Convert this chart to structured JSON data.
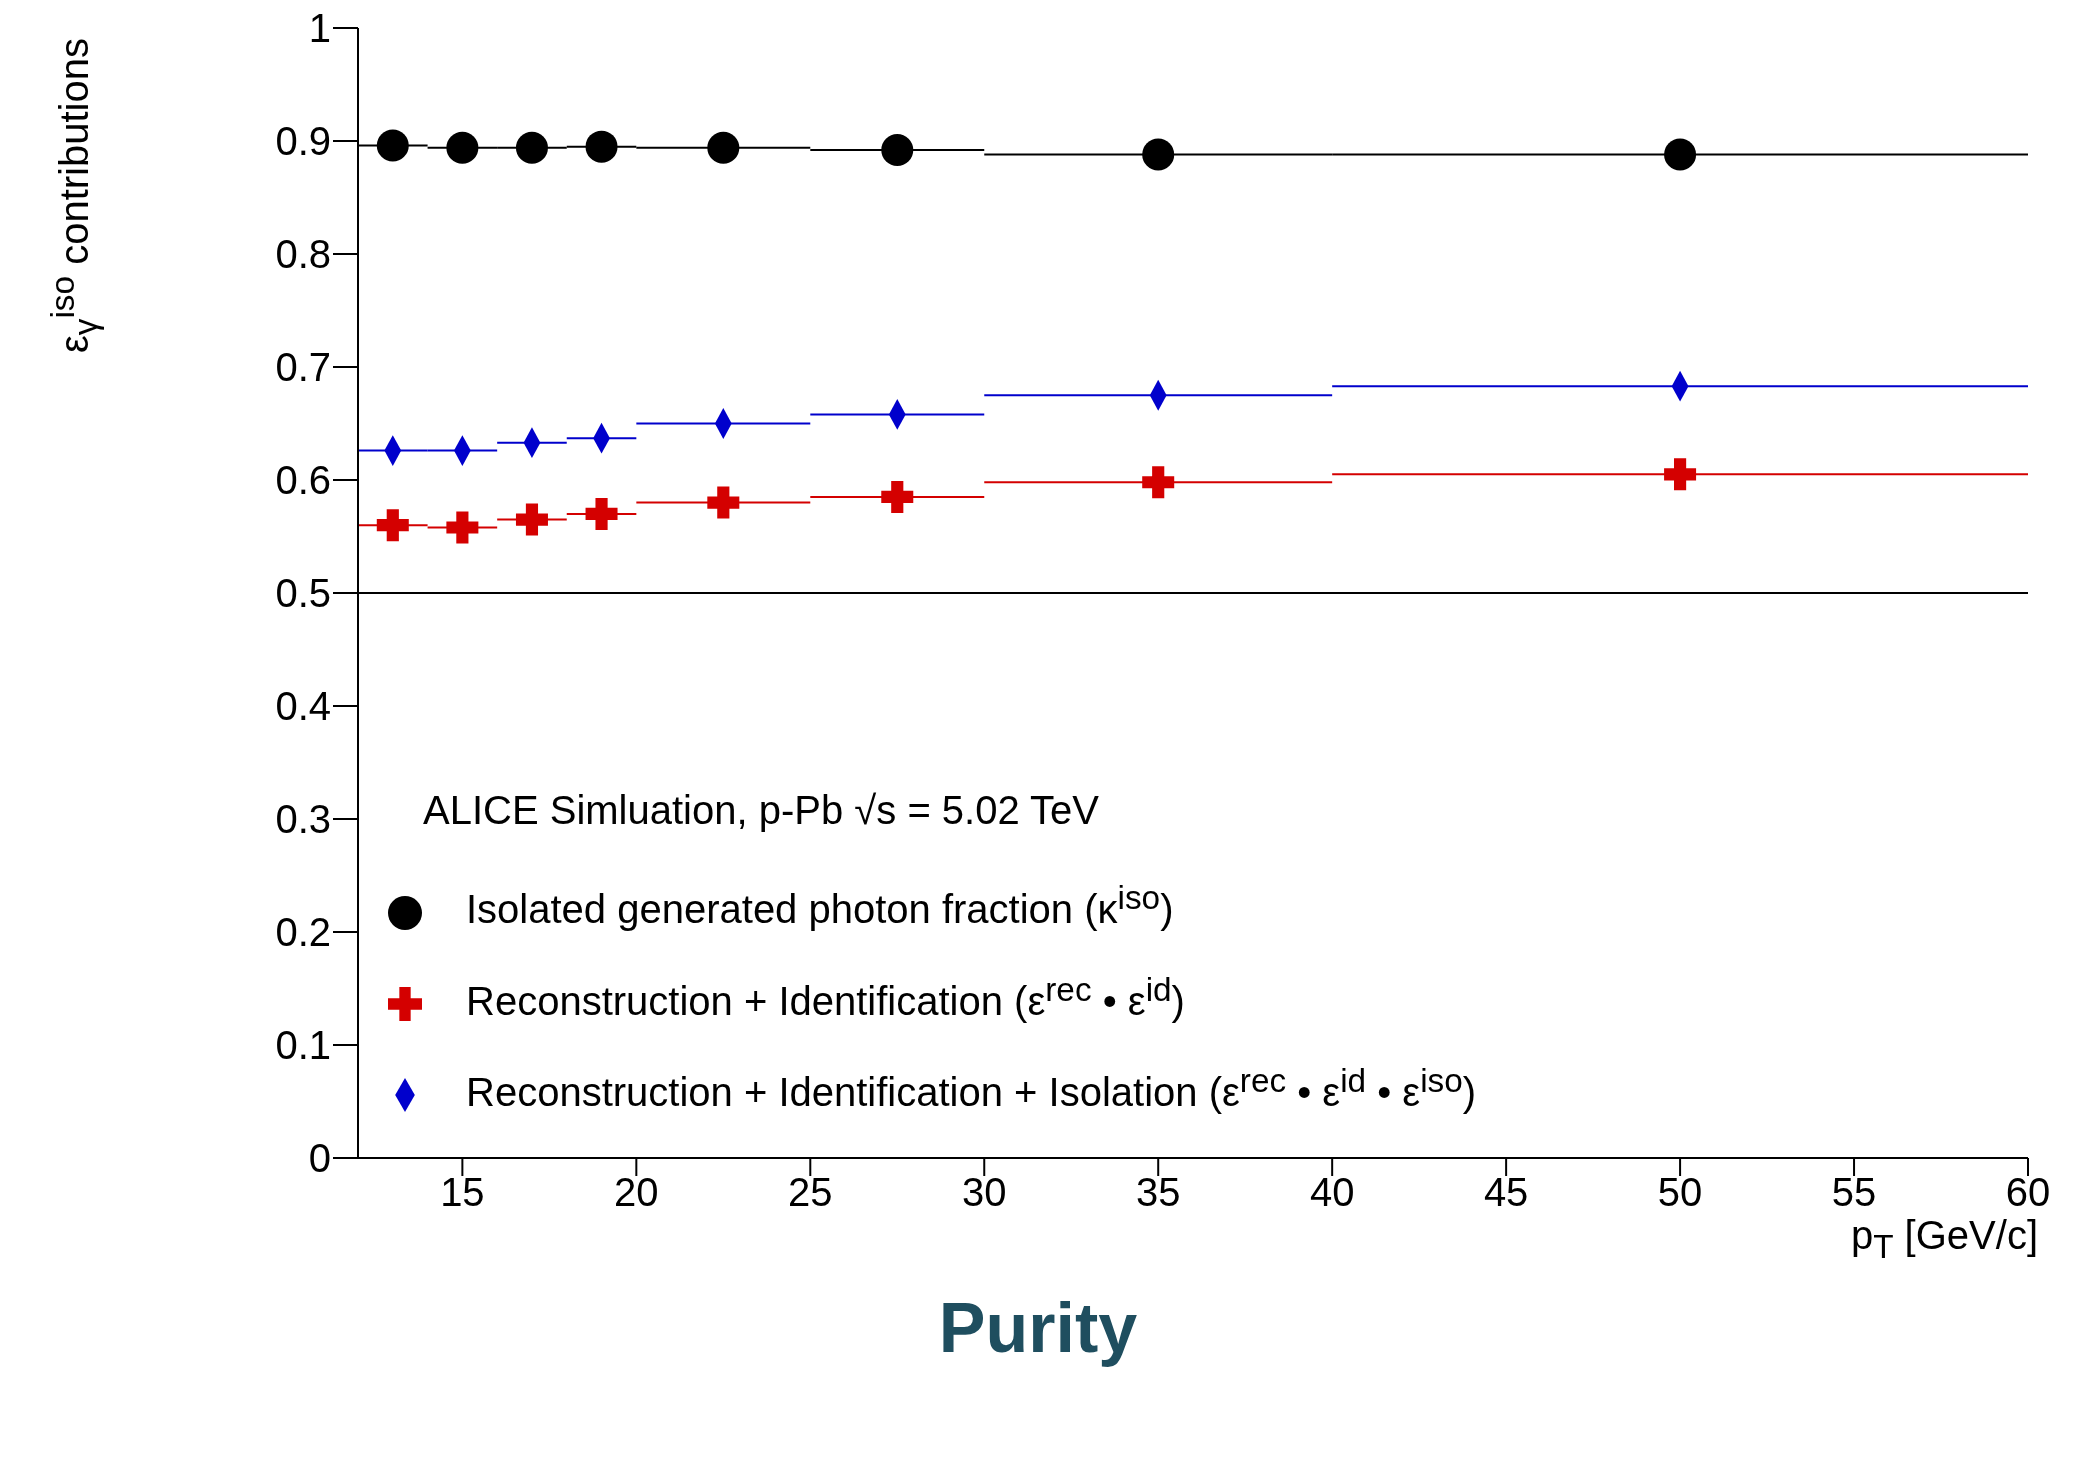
{
  "chart_data": {
    "type": "scatter",
    "title": "Purity",
    "xlabel": "p$_{T}$ [GeV/c]",
    "ylabel": "ε$_{γ}$$^{iso}$ contributions",
    "annotations": [
      "ALICE Simluation, p-Pb √s = 5.02 TeV"
    ],
    "x": [
      13,
      15,
      17,
      19,
      22.5,
      27.5,
      35,
      50
    ],
    "series": [
      {
        "name": "Isolated generated photon fraction (κ$^{iso}$)",
        "color": "#000000",
        "marker": "circle",
        "values": [
          0.896,
          0.894,
          0.894,
          0.895,
          0.894,
          0.892,
          0.888,
          0.888
        ],
        "xerrors": [
          1,
          1,
          1,
          1,
          2.5,
          2.5,
          5,
          10
        ]
      },
      {
        "name": "Reconstruction + Identification (ε$^{rec}$ • ε$^{id}$)",
        "color": "#d40000",
        "marker": "cross",
        "values": [
          0.56,
          0.558,
          0.565,
          0.57,
          0.58,
          0.585,
          0.598,
          0.605
        ],
        "xerrors": [
          1,
          1,
          1,
          1,
          2.5,
          2.5,
          5,
          10
        ]
      },
      {
        "name": "Reconstruction + Identification + Isolation (ε$^{rec}$ • ε$^{id}$ • ε$^{iso}$)",
        "color": "#0000cc",
        "marker": "diamond",
        "values": [
          0.626,
          0.626,
          0.633,
          0.637,
          0.65,
          0.658,
          0.675,
          0.683
        ],
        "xerrors": [
          1,
          1,
          1,
          1,
          2.5,
          2.5,
          5,
          10
        ]
      }
    ],
    "xlim": [
      12,
      60
    ],
    "xticks": [
      15,
      20,
      25,
      30,
      35,
      40,
      45,
      50,
      55,
      60
    ],
    "ylim": [
      0,
      1
    ],
    "yticks": [
      0,
      0.1,
      0.2,
      0.3,
      0.4,
      0.5,
      0.6,
      0.7,
      0.8,
      0.9,
      1
    ],
    "ref_lines": [
      {
        "axis": "y",
        "value": 0.5,
        "color": "#000000"
      }
    ],
    "grid": false,
    "legend": "bottom left"
  }
}
